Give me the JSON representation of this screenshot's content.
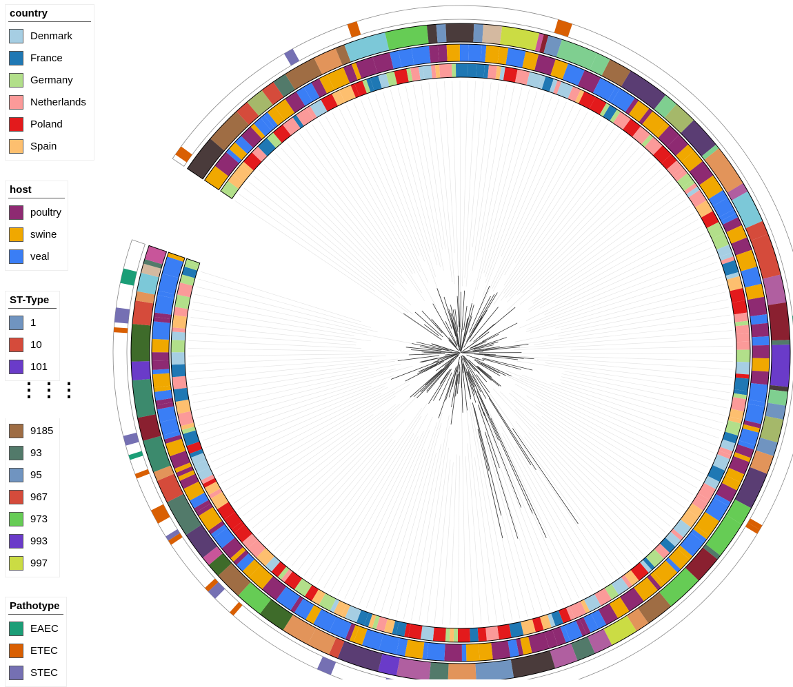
{
  "legends": {
    "country": {
      "title": "country",
      "items": [
        {
          "label": "Denmark",
          "color": "#a6cee3"
        },
        {
          "label": "France",
          "color": "#1f78b4"
        },
        {
          "label": "Germany",
          "color": "#b2df8a"
        },
        {
          "label": "Netherlands",
          "color": "#fb9a99"
        },
        {
          "label": "Poland",
          "color": "#e31a1c"
        },
        {
          "label": "Spain",
          "color": "#fdbf6f"
        }
      ]
    },
    "host": {
      "title": "host",
      "items": [
        {
          "label": "poultry",
          "color": "#8e2a72"
        },
        {
          "label": "swine",
          "color": "#f0a800"
        },
        {
          "label": "veal",
          "color": "#3a7ef5"
        }
      ]
    },
    "st_type_top": {
      "title": "ST-Type",
      "items": [
        {
          "label": "1",
          "color": "#7094c0"
        },
        {
          "label": "10",
          "color": "#d54b3b"
        },
        {
          "label": "101",
          "color": "#6a3bc9"
        }
      ]
    },
    "ellipsis": "⋮⋮⋮",
    "st_type_bottom": {
      "items": [
        {
          "label": "9185",
          "color": "#9f6d44"
        },
        {
          "label": "93",
          "color": "#527a6a"
        },
        {
          "label": "95",
          "color": "#7094c0"
        },
        {
          "label": "967",
          "color": "#d54b3b"
        },
        {
          "label": "973",
          "color": "#66cc55"
        },
        {
          "label": "993",
          "color": "#6a3bc9"
        },
        {
          "label": "997",
          "color": "#cbdc44"
        }
      ]
    },
    "pathotype": {
      "title": "Pathotype",
      "items": [
        {
          "label": "EAEC",
          "color": "#1b9e77"
        },
        {
          "label": "ETEC",
          "color": "#d95f02"
        },
        {
          "label": "STEC",
          "color": "#7570b3"
        }
      ]
    }
  },
  "extra_st_colors": [
    "#4a3b3b",
    "#a5b86a",
    "#d4b9a0",
    "#8a2030",
    "#3e6b2a",
    "#7fcf90",
    "#c8559a",
    "#5a3d73",
    "#e2945a",
    "#7cc8d8",
    "#3c8a6d",
    "#b05fa0"
  ]
}
